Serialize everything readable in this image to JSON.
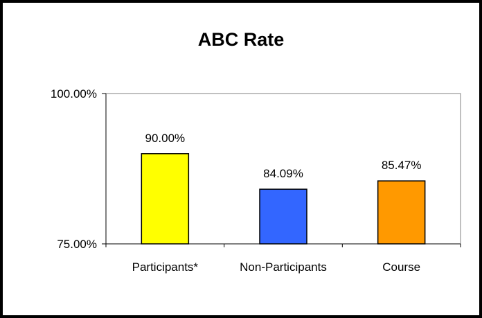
{
  "chart_data": {
    "type": "bar",
    "title": "ABC Rate",
    "xlabel": "",
    "ylabel": "",
    "categories": [
      "Participants*",
      "Non-Participants",
      "Course"
    ],
    "values": [
      90.0,
      84.09,
      85.47
    ],
    "data_labels": [
      "90.00%",
      "84.09%",
      "85.47%"
    ],
    "colors": [
      "#ffff00",
      "#3366ff",
      "#ff9900"
    ],
    "ylim": [
      75,
      100
    ],
    "yticks": [
      {
        "value": 100,
        "label": "100.00%"
      },
      {
        "value": 75,
        "label": "75.00%"
      }
    ],
    "grid": false,
    "legend": "none"
  }
}
